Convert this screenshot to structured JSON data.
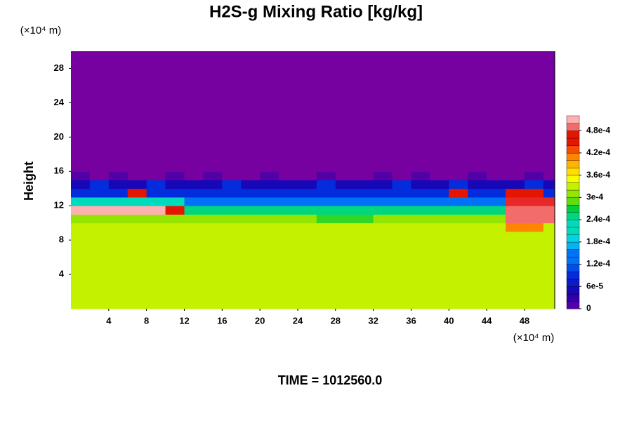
{
  "chart_data": {
    "type": "heatmap",
    "title": "H2S-g Mixing Ratio [kg/kg]",
    "x_unit": "(×10⁴ m)",
    "y_unit": "(×10⁴ m)",
    "y_label": "Height",
    "annotation": "TIME = 1012560.0",
    "xlim": [
      0,
      51.2
    ],
    "ylim": [
      0,
      30
    ],
    "xticks": [
      4,
      8,
      12,
      16,
      20,
      24,
      28,
      32,
      36,
      40,
      44,
      48
    ],
    "yticks": [
      4,
      8,
      12,
      16,
      20,
      24,
      28
    ],
    "zlim": [
      0,
      0.00052
    ],
    "zticks": [
      0,
      {
        "value": 6e-05,
        "label": "6e-5"
      },
      {
        "value": 0.00012,
        "label": "1.2e-4"
      },
      {
        "value": 0.00018,
        "label": "1.8e-4"
      },
      {
        "value": 0.00024,
        "label": "2.4e-4"
      },
      {
        "value": 0.0003,
        "label": "3e-4"
      },
      {
        "value": 0.00036,
        "label": "3.6e-4"
      },
      {
        "value": 0.00042,
        "label": "4.2e-4"
      },
      {
        "value": 0.00048,
        "label": "4.8e-4"
      }
    ],
    "colors": [
      "#7700a0",
      "#1a00b0",
      "#0030e0",
      "#0090ff",
      "#00e0e0",
      "#00d040",
      "#80e000",
      "#ffff00",
      "#ff9000",
      "#e00000",
      "#ffb0b0"
    ],
    "x_edges": [
      0,
      2,
      4,
      6,
      8,
      10,
      12,
      14,
      16,
      18,
      20,
      22,
      24,
      26,
      28,
      30,
      32,
      34,
      36,
      38,
      40,
      42,
      44,
      46,
      48,
      50,
      51.2
    ],
    "y_edges": [
      0,
      9,
      10,
      11,
      12,
      13,
      14,
      15,
      16,
      30
    ],
    "z": [
      [
        0.00034,
        0.00034,
        0.00034,
        0.00034,
        0.00034,
        0.00034,
        0.00034,
        0.00034,
        0.00034,
        0.00034,
        0.00034,
        0.00034,
        0.00034,
        0.00034,
        0.00034,
        0.00034,
        0.00034,
        0.00034,
        0.00034,
        0.00034,
        0.00034,
        0.00034,
        0.00034,
        0.00034,
        0.00034,
        0.00034
      ],
      [
        0.00034,
        0.00034,
        0.00034,
        0.00034,
        0.00034,
        0.00034,
        0.00034,
        0.00034,
        0.00034,
        0.00034,
        0.00034,
        0.00034,
        0.00034,
        0.00034,
        0.00034,
        0.00034,
        0.00034,
        0.00034,
        0.00034,
        0.00034,
        0.00034,
        0.00034,
        0.00034,
        0.00042,
        0.00042,
        0.00034
      ],
      [
        0.00032,
        0.00032,
        0.00032,
        0.00032,
        0.00032,
        0.00032,
        0.00032,
        0.00032,
        0.00032,
        0.00032,
        0.00032,
        0.00032,
        0.00032,
        0.00028,
        0.00028,
        0.00028,
        0.00032,
        0.00032,
        0.00032,
        0.00032,
        0.00032,
        0.00032,
        0.00032,
        0.0005,
        0.0005,
        0.0005
      ],
      [
        0.00052,
        0.00052,
        0.00052,
        0.00052,
        0.00052,
        0.00045,
        0.00024,
        0.00024,
        0.00024,
        0.00024,
        0.00024,
        0.00024,
        0.00024,
        0.00024,
        0.00024,
        0.00024,
        0.00024,
        0.00024,
        0.00024,
        0.00024,
        0.00024,
        0.00024,
        0.00024,
        0.0005,
        0.0005,
        0.0005
      ],
      [
        0.00022,
        0.00022,
        0.00022,
        0.00022,
        0.00022,
        0.00022,
        0.00015,
        0.00015,
        0.00015,
        0.00015,
        0.00015,
        0.00015,
        0.00015,
        0.00015,
        0.00015,
        0.00015,
        0.00015,
        0.00015,
        0.00015,
        0.00015,
        0.00015,
        0.00015,
        0.00015,
        0.00048,
        0.00048,
        0.00048
      ],
      [
        0.0001,
        0.0001,
        0.0001,
        0.00045,
        0.0001,
        0.0001,
        0.0001,
        0.0001,
        0.0001,
        0.0001,
        0.0001,
        0.0001,
        0.0001,
        0.0001,
        0.0001,
        0.0001,
        0.0001,
        0.0001,
        0.0001,
        0.0001,
        0.00045,
        0.0001,
        0.0001,
        0.00045,
        0.00045,
        0.0001
      ],
      [
        6e-05,
        0.0001,
        6e-05,
        6e-05,
        0.0001,
        6e-05,
        6e-05,
        6e-05,
        0.0001,
        6e-05,
        6e-05,
        6e-05,
        6e-05,
        0.0001,
        6e-05,
        6e-05,
        6e-05,
        0.0001,
        6e-05,
        6e-05,
        0.0001,
        6e-05,
        6e-05,
        6e-05,
        0.0001,
        6e-05
      ],
      [
        2e-05,
        0,
        2e-05,
        0,
        0,
        2e-05,
        0,
        2e-05,
        0,
        0,
        2e-05,
        0,
        0,
        2e-05,
        0,
        0,
        2e-05,
        0,
        2e-05,
        0,
        0,
        2e-05,
        0,
        0,
        2e-05,
        0
      ],
      [
        0,
        0,
        0,
        0,
        0,
        0,
        0,
        0,
        0,
        0,
        0,
        0,
        0,
        0,
        0,
        0,
        0,
        0,
        0,
        0,
        0,
        0,
        0,
        0,
        0,
        0
      ]
    ]
  }
}
